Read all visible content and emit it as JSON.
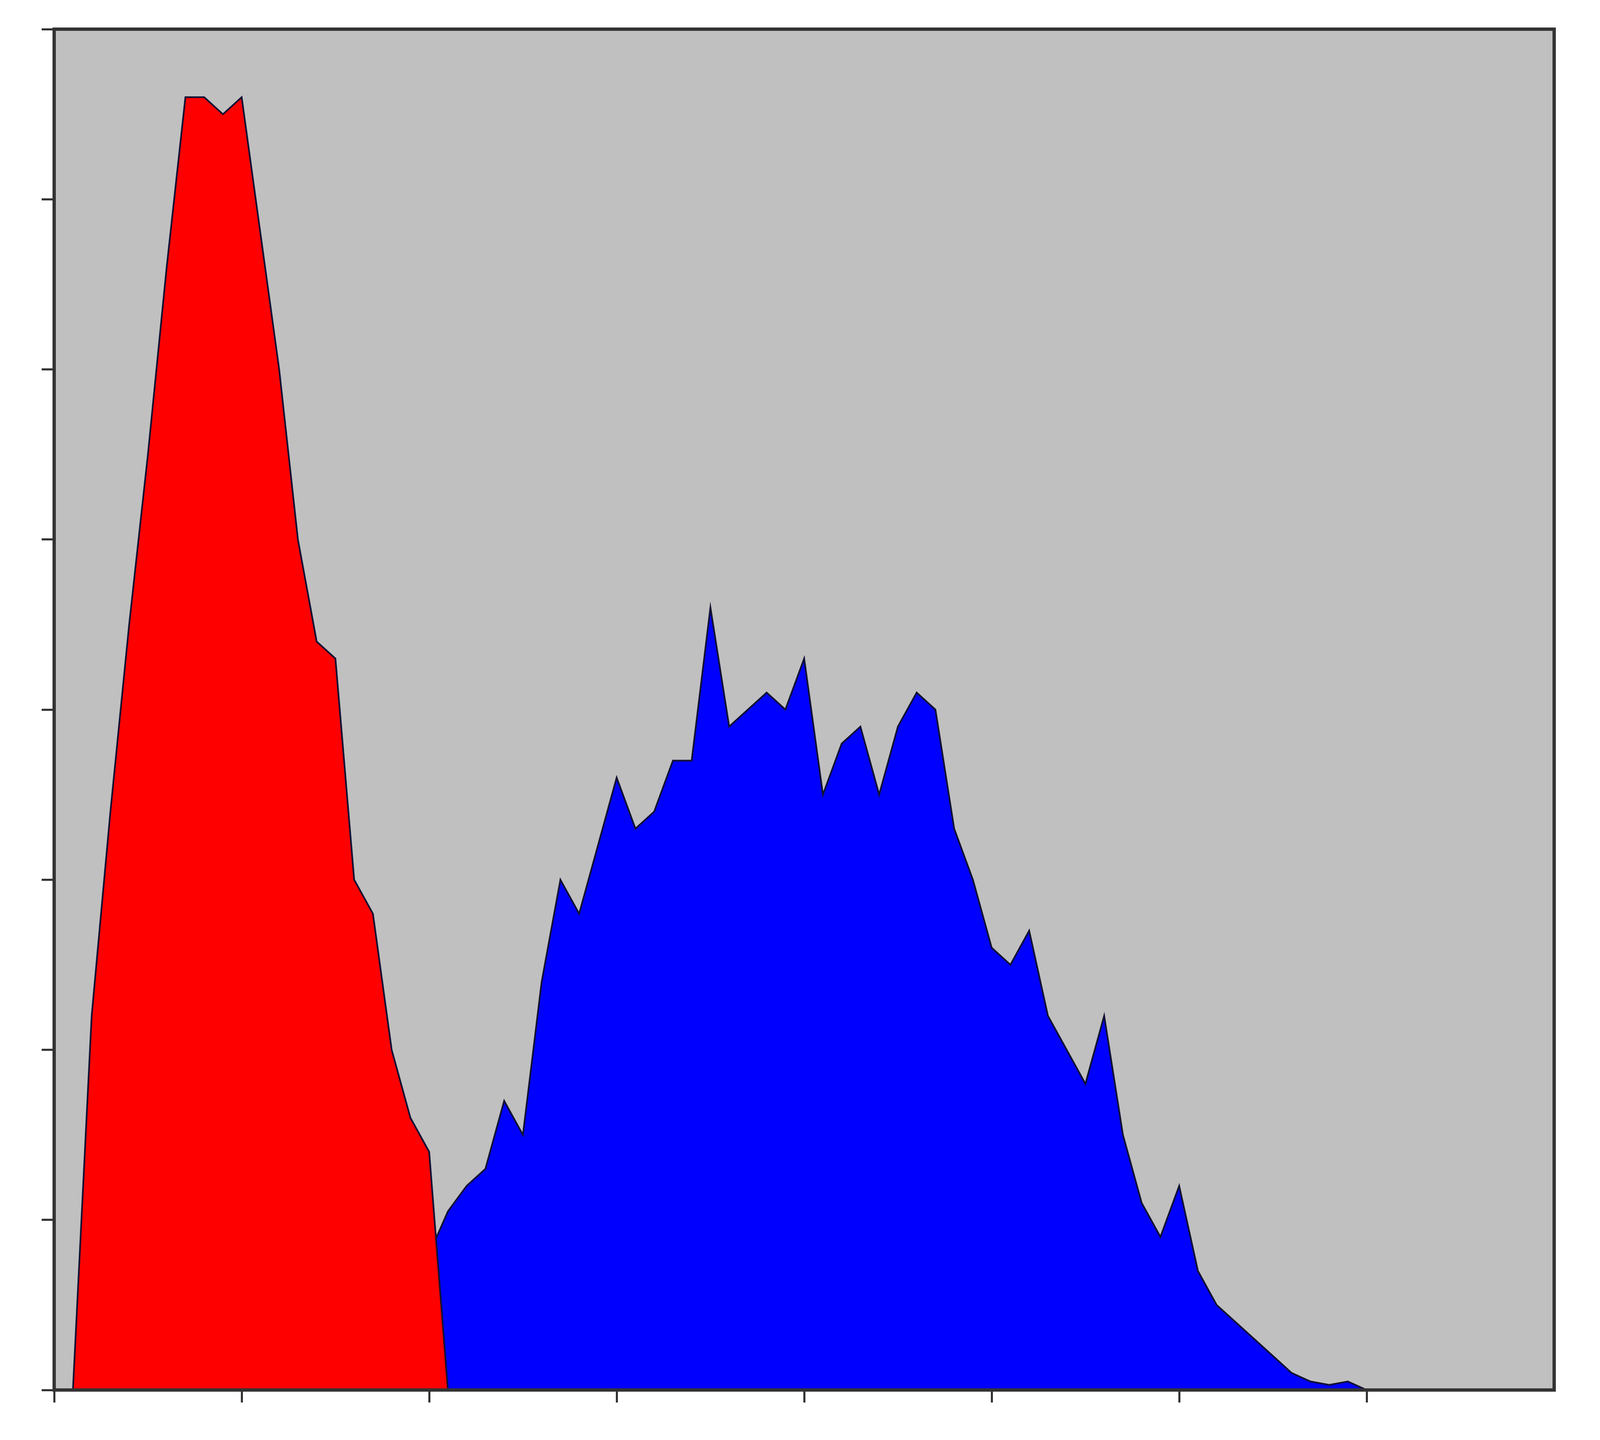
{
  "chart_data": {
    "type": "area",
    "x": [
      0,
      0.1,
      0.2,
      0.3,
      0.4,
      0.5,
      0.6,
      0.7,
      0.8,
      0.9,
      1,
      1.1,
      1.2,
      1.3,
      1.4,
      1.5,
      1.6,
      1.7,
      1.8,
      1.9,
      2,
      2.1,
      2.2,
      2.3,
      2.4,
      2.5,
      2.6,
      2.7,
      2.8,
      2.9,
      3,
      3.1,
      3.2,
      3.3,
      3.4,
      3.5,
      3.6,
      3.7,
      3.8,
      3.9,
      4,
      4.1,
      4.2,
      4.3,
      4.4,
      4.5,
      4.6,
      4.7,
      4.8,
      4.9,
      5,
      5.1,
      5.2,
      5.3,
      5.4,
      5.5,
      5.6,
      5.7,
      5.8,
      5.9,
      6,
      6.1,
      6.2,
      6.3,
      6.4,
      6.5,
      6.6,
      6.7,
      6.8,
      6.9,
      7,
      7.1,
      7.2,
      7.3,
      7.4,
      7.5,
      7.6,
      7.7,
      7.8,
      7.9,
      8
    ],
    "series": [
      {
        "color": "#ff0000",
        "values": [
          0,
          0,
          2.2,
          3.4,
          4.5,
          5.5,
          6.6,
          7.6,
          7.6,
          7.5,
          7.6,
          6.8,
          6.0,
          5.0,
          4.4,
          4.3,
          3.0,
          2.8,
          2.0,
          1.6,
          1.4,
          0,
          0,
          0,
          0,
          0,
          0,
          0,
          0,
          0,
          0,
          0,
          0,
          0,
          0,
          0,
          0,
          0,
          0,
          0,
          0,
          0,
          0,
          0,
          0,
          0,
          0,
          0,
          0,
          0,
          0,
          0,
          0,
          0,
          0,
          0,
          0,
          0,
          0,
          0,
          0,
          0,
          0,
          0,
          0,
          0,
          0,
          0,
          0,
          0,
          0,
          0,
          0,
          0,
          0,
          0,
          0,
          0,
          0,
          0,
          0
        ]
      },
      {
        "color": "#0000ff",
        "values": [
          0,
          0,
          0,
          0,
          0,
          0,
          0,
          0,
          0,
          0,
          0,
          0,
          0,
          0,
          0,
          0.05,
          0.1,
          0.2,
          0.3,
          0.45,
          0.8,
          1.05,
          1.2,
          1.3,
          1.7,
          1.5,
          2.4,
          3.0,
          2.8,
          3.2,
          3.6,
          3.3,
          3.4,
          3.7,
          3.7,
          4.6,
          3.9,
          4.0,
          4.1,
          4.0,
          4.3,
          3.5,
          3.8,
          3.9,
          3.5,
          3.9,
          4.1,
          4.0,
          3.3,
          3.0,
          2.6,
          2.5,
          2.7,
          2.2,
          2.0,
          1.8,
          2.2,
          1.5,
          1.1,
          0.9,
          1.2,
          0.7,
          0.5,
          0.4,
          0.3,
          0.2,
          0.1,
          0.05,
          0.03,
          0.05,
          0,
          0,
          0,
          0,
          0,
          0,
          0,
          0,
          0,
          0,
          0
        ]
      }
    ],
    "xlim": [
      0,
      8
    ],
    "xticks": [
      0,
      1,
      2,
      3,
      4,
      5,
      6,
      7
    ],
    "ylim": [
      0,
      8
    ],
    "yticks": [
      0,
      1,
      2,
      3,
      4,
      5,
      6,
      7,
      8
    ],
    "grid": false,
    "tick_labels": false
  }
}
